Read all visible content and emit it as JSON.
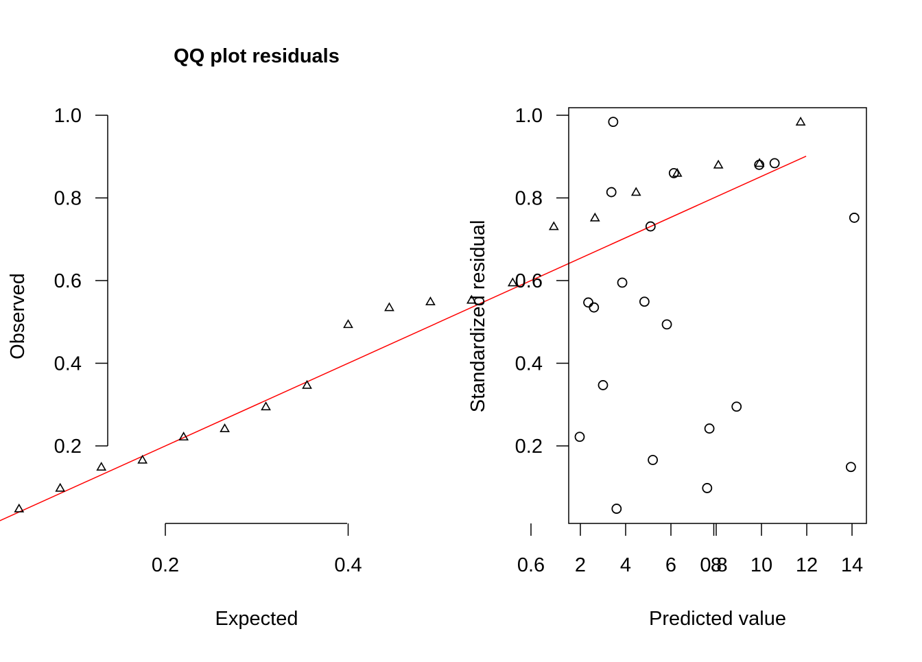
{
  "chart_data": [
    {
      "type": "scatter",
      "title": "QQ plot residuals",
      "xlabel": "Expected",
      "ylabel": "Observed",
      "xlim": [
        0.0,
        1.0
      ],
      "ylim": [
        0.0,
        1.0
      ],
      "x_ticks": [
        "0.2",
        "0.4",
        "0.6",
        "0.8"
      ],
      "y_ticks": [
        "0.2",
        "0.4",
        "0.6",
        "0.8",
        "1.0"
      ],
      "marker": "triangle",
      "reference_line": {
        "type": "identity",
        "color": "#ff0000"
      },
      "points": [
        {
          "x": 0.04,
          "y": 0.048
        },
        {
          "x": 0.085,
          "y": 0.098
        },
        {
          "x": 0.13,
          "y": 0.149
        },
        {
          "x": 0.175,
          "y": 0.166
        },
        {
          "x": 0.22,
          "y": 0.222
        },
        {
          "x": 0.265,
          "y": 0.242
        },
        {
          "x": 0.31,
          "y": 0.295
        },
        {
          "x": 0.355,
          "y": 0.347
        },
        {
          "x": 0.4,
          "y": 0.494
        },
        {
          "x": 0.445,
          "y": 0.535
        },
        {
          "x": 0.49,
          "y": 0.549
        },
        {
          "x": 0.535,
          "y": 0.553
        },
        {
          "x": 0.58,
          "y": 0.595
        },
        {
          "x": 0.625,
          "y": 0.731
        },
        {
          "x": 0.67,
          "y": 0.752
        },
        {
          "x": 0.715,
          "y": 0.814
        },
        {
          "x": 0.76,
          "y": 0.86
        },
        {
          "x": 0.805,
          "y": 0.88
        },
        {
          "x": 0.85,
          "y": 0.884
        },
        {
          "x": 0.895,
          "y": 0.984
        }
      ]
    },
    {
      "type": "scatter",
      "title": "",
      "xlabel": "Predicted value",
      "ylabel": "Standardized residual",
      "xlim": [
        1.5,
        14.6
      ],
      "ylim": [
        0.014,
        1.016
      ],
      "x_ticks": [
        "2",
        "4",
        "6",
        "8",
        "10",
        "12",
        "14"
      ],
      "y_ticks": [
        "0.2",
        "0.4",
        "0.6",
        "0.8",
        "1.0"
      ],
      "marker": "circle",
      "points": [
        {
          "x": 1.97,
          "y": 0.222
        },
        {
          "x": 2.35,
          "y": 0.547
        },
        {
          "x": 2.6,
          "y": 0.535
        },
        {
          "x": 3.0,
          "y": 0.347
        },
        {
          "x": 3.37,
          "y": 0.814
        },
        {
          "x": 3.45,
          "y": 0.984
        },
        {
          "x": 3.6,
          "y": 0.048
        },
        {
          "x": 3.85,
          "y": 0.595
        },
        {
          "x": 4.83,
          "y": 0.549
        },
        {
          "x": 5.1,
          "y": 0.731
        },
        {
          "x": 5.2,
          "y": 0.166
        },
        {
          "x": 5.82,
          "y": 0.494
        },
        {
          "x": 6.13,
          "y": 0.86
        },
        {
          "x": 7.6,
          "y": 0.098
        },
        {
          "x": 7.7,
          "y": 0.242
        },
        {
          "x": 8.9,
          "y": 0.295
        },
        {
          "x": 9.9,
          "y": 0.88
        },
        {
          "x": 10.58,
          "y": 0.884
        },
        {
          "x": 13.95,
          "y": 0.149
        },
        {
          "x": 14.1,
          "y": 0.752
        }
      ]
    }
  ]
}
